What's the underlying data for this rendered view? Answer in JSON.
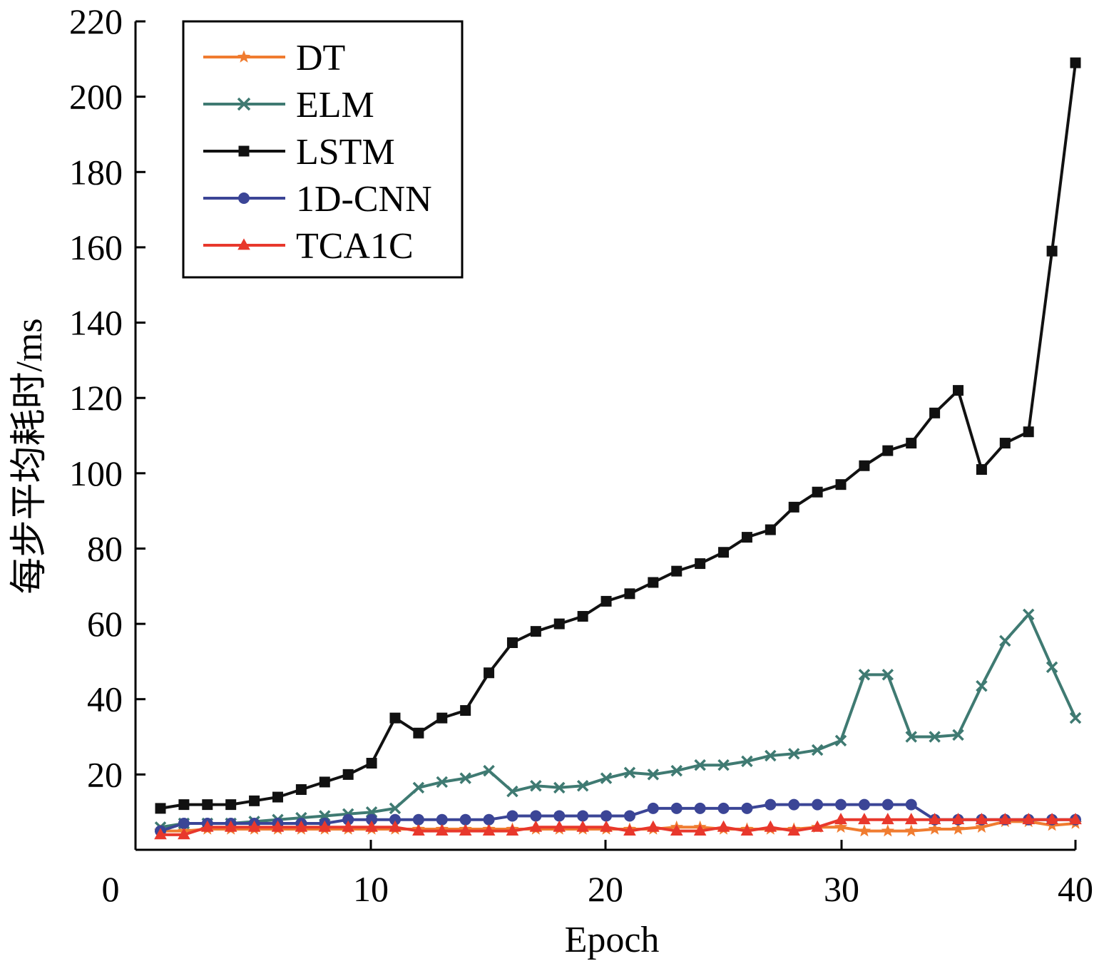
{
  "chart_data": {
    "type": "line",
    "xlabel": "Epoch",
    "ylabel": "每步平均耗时/ms",
    "xlim": [
      0,
      40
    ],
    "ylim": [
      0,
      220
    ],
    "xticks": [
      "0",
      "10",
      "20",
      "30",
      "40"
    ],
    "yticks": [
      "20",
      "40",
      "60",
      "80",
      "100",
      "120",
      "140",
      "160",
      "180",
      "200",
      "220"
    ],
    "grid": false,
    "legend_position": "top-left",
    "x": [
      2,
      3,
      4,
      5,
      6,
      7,
      8,
      9,
      10,
      11,
      12,
      13,
      14,
      15,
      16,
      17,
      18,
      19,
      20,
      21,
      22,
      23,
      24,
      25,
      26,
      27,
      28,
      29,
      30,
      31,
      32,
      33,
      34,
      35,
      36,
      37,
      38,
      39,
      40,
      41
    ],
    "series": [
      {
        "name": "DT",
        "color": "#f07c30",
        "marker": "star",
        "values": [
          5,
          5,
          5.5,
          5.5,
          5.5,
          5.5,
          5.5,
          5.5,
          5.5,
          5.5,
          5.5,
          5.5,
          5.5,
          5.5,
          5.5,
          5.5,
          5.5,
          5.5,
          5.5,
          5.5,
          5.5,
          5.5,
          6,
          6,
          5.5,
          5.5,
          5.5,
          5.5,
          6,
          6,
          5,
          5,
          5,
          5.5,
          5.5,
          6,
          7.5,
          7.5,
          6.5,
          7
        ]
      },
      {
        "name": "ELM",
        "color": "#3f7a72",
        "marker": "x",
        "values": [
          6,
          7,
          7,
          7,
          7.5,
          8,
          8.5,
          9,
          9.5,
          10,
          11,
          16.5,
          18,
          19,
          21,
          15.5,
          17,
          16.5,
          17,
          19,
          20.5,
          20,
          21,
          22.5,
          22.5,
          23.5,
          25,
          25.5,
          26.5,
          29,
          46.5,
          46.5,
          30,
          30,
          30.5,
          43.5,
          55.5,
          62.5,
          48.5,
          35
        ]
      },
      {
        "name": "LSTM",
        "color": "#111111",
        "marker": "square",
        "values": [
          11,
          12,
          12,
          12,
          13,
          14,
          16,
          18,
          20,
          23,
          35,
          31,
          35,
          37,
          47,
          55,
          58,
          60,
          62,
          66,
          68,
          71,
          74,
          76,
          79,
          83,
          85,
          91,
          95,
          97,
          102,
          106,
          108,
          116,
          122,
          101,
          108,
          111,
          159,
          209
        ]
      },
      {
        "name": "1D-CNN",
        "color": "#3b4596",
        "marker": "circle",
        "values": [
          5,
          7,
          7,
          7,
          7,
          7,
          7,
          7,
          8,
          8,
          8,
          8,
          8,
          8,
          8,
          9,
          9,
          9,
          9,
          9,
          9,
          11,
          11,
          11,
          11,
          11,
          12,
          12,
          12,
          12,
          12,
          12,
          12,
          8,
          8,
          8,
          8,
          8,
          8,
          8
        ]
      },
      {
        "name": "TCA1C",
        "color": "#e8382c",
        "marker": "triangle",
        "values": [
          4,
          4,
          6,
          6,
          6,
          6,
          6,
          6,
          6,
          6,
          6,
          5,
          5,
          5,
          5,
          5,
          6,
          6,
          6,
          6,
          5,
          6,
          5,
          5,
          6,
          5,
          6,
          5,
          6,
          8,
          8,
          8,
          8,
          8,
          8,
          8,
          8,
          8,
          8,
          8
        ]
      }
    ]
  }
}
